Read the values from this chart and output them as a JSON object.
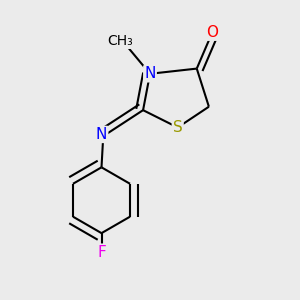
{
  "background_color": "#ebebeb",
  "atom_colors": {
    "C": "#000000",
    "N": "#0000ff",
    "O": "#ff0000",
    "S": "#999900",
    "F": "#ee00ee",
    "H": "#000000"
  },
  "bond_color": "#000000",
  "bond_width": 1.5,
  "font_size_atom": 11
}
